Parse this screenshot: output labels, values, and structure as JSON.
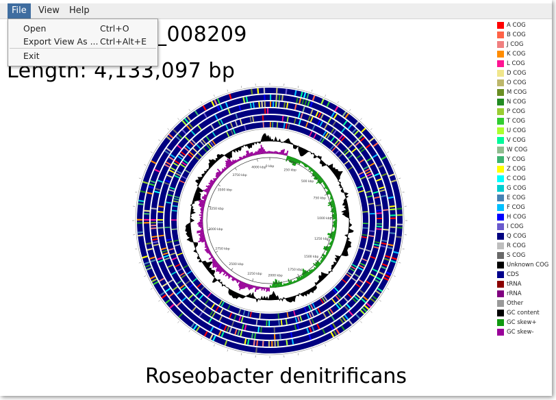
{
  "menubar": {
    "items": [
      {
        "label": "File",
        "active": true
      },
      {
        "label": "View",
        "active": false
      },
      {
        "label": "Help",
        "active": false
      }
    ]
  },
  "file_menu": {
    "items": [
      {
        "label": "Open",
        "shortcut": "Ctrl+O"
      },
      {
        "label": "Export View As ...",
        "shortcut": "Ctrl+Alt+E"
      },
      {
        "label": "Exit",
        "shortcut": ""
      }
    ]
  },
  "map": {
    "accession_fragment": "_008209",
    "length_label": "Length: 4,133,097 bp",
    "organism": "Roseobacter denitrificans",
    "position_labels": [
      "0 kbp",
      "250 kbp",
      "500 kbp",
      "750 kbp",
      "1000 kbp",
      "1250 kbp",
      "1500 kbp",
      "1750 kbp",
      "2000 kbp",
      "2250 kbp",
      "2500 kbp",
      "2750 kbp",
      "3000 kbp",
      "3250 kbp",
      "3500 kbp",
      "3750 kbp",
      "4000 kbp"
    ],
    "track_colors": {
      "backbone": "#000080",
      "gc_content": "#000000",
      "gc_skew_plus": "#109910",
      "gc_skew_minus": "#990099"
    }
  },
  "legend": {
    "items": [
      {
        "label": "A COG",
        "color": "#ff0000"
      },
      {
        "label": "B COG",
        "color": "#ff6347"
      },
      {
        "label": "J COG",
        "color": "#f08080"
      },
      {
        "label": "K COG",
        "color": "#ff8c00"
      },
      {
        "label": "L COG",
        "color": "#ff1493"
      },
      {
        "label": "D COG",
        "color": "#f0e68c"
      },
      {
        "label": "O COG",
        "color": "#bdb76b"
      },
      {
        "label": "M COG",
        "color": "#6b8e23"
      },
      {
        "label": "N COG",
        "color": "#228b22"
      },
      {
        "label": "P COG",
        "color": "#9acd32"
      },
      {
        "label": "T COG",
        "color": "#32cd32"
      },
      {
        "label": "U COG",
        "color": "#adff2f"
      },
      {
        "label": "V COG",
        "color": "#00fa9a"
      },
      {
        "label": "W COG",
        "color": "#8fbc8f"
      },
      {
        "label": "Y COG",
        "color": "#3cb371"
      },
      {
        "label": "Z COG",
        "color": "#ffff00"
      },
      {
        "label": "C COG",
        "color": "#00ffff"
      },
      {
        "label": "G COG",
        "color": "#00ced1"
      },
      {
        "label": "E COG",
        "color": "#4682b4"
      },
      {
        "label": "F COG",
        "color": "#00bfff"
      },
      {
        "label": "H COG",
        "color": "#0000ff"
      },
      {
        "label": "I COG",
        "color": "#6a5acd"
      },
      {
        "label": "Q COG",
        "color": "#000080"
      },
      {
        "label": "R COG",
        "color": "#bebebe"
      },
      {
        "label": "S COG",
        "color": "#696969"
      },
      {
        "label": "Unknown COG",
        "color": "#000000"
      },
      {
        "label": "CDS",
        "color": "#00008b"
      },
      {
        "label": "tRNA",
        "color": "#8b0000"
      },
      {
        "label": "rRNA",
        "color": "#800080"
      },
      {
        "label": "Other",
        "color": "#999999"
      },
      {
        "label": "GC content",
        "color": "#000000"
      },
      {
        "label": "GC skew+",
        "color": "#109910"
      },
      {
        "label": "GC skew-",
        "color": "#990099"
      }
    ]
  }
}
